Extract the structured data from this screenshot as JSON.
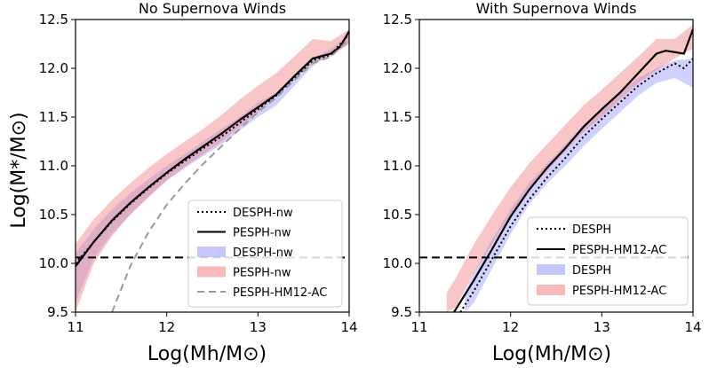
{
  "chart_data": {
    "type": "line",
    "ylabel": "Log(M*/M⊙)",
    "xlabel": "Log(Mh/M⊙)",
    "panels": [
      {
        "title": "No Supernova Winds",
        "xlim": [
          11,
          14
        ],
        "ylim": [
          9.5,
          12.5
        ],
        "xticks": [
          "11",
          "12",
          "13",
          "14"
        ],
        "yticks": [
          "9.5",
          "10.0",
          "10.5",
          "11.0",
          "11.5",
          "12.0",
          "12.5"
        ],
        "hline": 10.06,
        "legend": [
          "DESPH-nw",
          "PESPH-nw",
          "DESPH-nw",
          "PESPH-nw",
          "PESPH-HM12-AC"
        ],
        "series": [
          {
            "name": "DESPH-nw",
            "kind": "band",
            "color": "#8c8cff",
            "alpha": 0.4,
            "x": [
              11.0,
              11.2,
              11.4,
              11.6,
              11.8,
              12.0,
              12.2,
              12.4,
              12.6,
              12.8,
              13.0,
              13.2,
              13.4,
              13.6,
              13.8,
              14.0
            ],
            "lo": [
              9.6,
              10.05,
              10.3,
              10.5,
              10.68,
              10.85,
              10.98,
              11.1,
              11.22,
              11.36,
              11.5,
              11.62,
              11.82,
              12.02,
              12.15,
              12.25
            ],
            "hi": [
              10.1,
              10.35,
              10.55,
              10.72,
              10.86,
              11.0,
              11.12,
              11.25,
              11.38,
              11.5,
              11.65,
              11.75,
              11.92,
              12.1,
              12.2,
              12.35
            ]
          },
          {
            "name": "PESPH-nw",
            "kind": "band",
            "color": "#f08080",
            "alpha": 0.45,
            "x": [
              11.0,
              11.2,
              11.4,
              11.6,
              11.8,
              12.0,
              12.2,
              12.4,
              12.6,
              12.8,
              13.0,
              13.2,
              13.4,
              13.6,
              13.8,
              14.0
            ],
            "lo": [
              9.5,
              10.0,
              10.28,
              10.5,
              10.68,
              10.85,
              10.99,
              11.12,
              11.25,
              11.4,
              11.55,
              11.72,
              11.9,
              12.05,
              12.12,
              12.25
            ],
            "hi": [
              10.2,
              10.45,
              10.65,
              10.82,
              10.98,
              11.12,
              11.25,
              11.38,
              11.52,
              11.68,
              11.82,
              11.95,
              12.12,
              12.3,
              12.28,
              12.4
            ]
          },
          {
            "name": "DESPH-nw",
            "kind": "line",
            "color": "#000000",
            "dash": "2,3",
            "x": [
              11.0,
              11.2,
              11.4,
              11.6,
              11.8,
              12.0,
              12.2,
              12.4,
              12.6,
              12.8,
              13.0,
              13.2,
              13.4,
              13.6,
              13.8,
              14.0
            ],
            "y": [
              10.0,
              10.22,
              10.43,
              10.61,
              10.77,
              10.92,
              11.05,
              11.18,
              11.3,
              11.44,
              11.58,
              11.72,
              11.9,
              12.08,
              12.14,
              12.35
            ]
          },
          {
            "name": "PESPH-nw",
            "kind": "line",
            "color": "#000000",
            "dash": "",
            "x": [
              11.0,
              11.2,
              11.4,
              11.6,
              11.8,
              12.0,
              12.2,
              12.4,
              12.6,
              12.8,
              13.0,
              13.2,
              13.4,
              13.6,
              13.8,
              13.9,
              14.0
            ],
            "y": [
              9.97,
              10.22,
              10.44,
              10.62,
              10.78,
              10.93,
              11.07,
              11.2,
              11.33,
              11.47,
              11.6,
              11.73,
              11.92,
              12.1,
              12.15,
              12.22,
              12.38
            ]
          },
          {
            "name": "PESPH-HM12-AC",
            "kind": "line",
            "color": "#999999",
            "dash": "8,5",
            "x": [
              11.4,
              11.6,
              11.8,
              12.0,
              12.2,
              12.4,
              12.6,
              12.8,
              13.0,
              13.2,
              13.4,
              13.6,
              13.8,
              14.0
            ],
            "y": [
              9.5,
              9.97,
              10.32,
              10.6,
              10.82,
              11.02,
              11.2,
              11.38,
              11.55,
              11.7,
              11.88,
              12.05,
              12.12,
              12.3
            ]
          }
        ]
      },
      {
        "title": "With Supernova Winds",
        "xlim": [
          11,
          14
        ],
        "ylim": [
          9.5,
          12.5
        ],
        "xticks": [
          "11",
          "12",
          "13",
          "14"
        ],
        "yticks": [
          "9.5",
          "10.0",
          "10.5",
          "11.0",
          "11.5",
          "12.0",
          "12.5"
        ],
        "hline": 10.06,
        "legend": [
          "DESPH",
          "PESPH-HM12-AC",
          "DESPH",
          "PESPH-HM12-AC"
        ],
        "series": [
          {
            "name": "DESPH",
            "kind": "band",
            "color": "#8c8cff",
            "alpha": 0.4,
            "x": [
              11.5,
              11.6,
              11.8,
              12.0,
              12.2,
              12.4,
              12.6,
              12.8,
              13.0,
              13.2,
              13.4,
              13.6,
              13.8,
              14.0
            ],
            "lo": [
              9.5,
              9.6,
              9.95,
              10.3,
              10.6,
              10.82,
              11.0,
              11.2,
              11.38,
              11.55,
              11.72,
              11.85,
              11.9,
              11.8
            ],
            "hi": [
              9.7,
              9.9,
              10.25,
              10.55,
              10.82,
              11.02,
              11.22,
              11.42,
              11.58,
              11.75,
              11.9,
              12.0,
              12.08,
              12.1
            ]
          },
          {
            "name": "PESPH-HM12-AC",
            "kind": "band",
            "color": "#f08080",
            "alpha": 0.45,
            "x": [
              11.3,
              11.4,
              11.6,
              11.8,
              12.0,
              12.2,
              12.4,
              12.6,
              12.8,
              13.0,
              13.2,
              13.4,
              13.6,
              13.8,
              14.0
            ],
            "lo": [
              9.5,
              9.55,
              9.9,
              10.2,
              10.5,
              10.75,
              10.95,
              11.15,
              11.35,
              11.5,
              11.68,
              11.85,
              11.98,
              12.1,
              12.2
            ],
            "hi": [
              9.7,
              9.85,
              10.2,
              10.5,
              10.78,
              11.02,
              11.22,
              11.42,
              11.62,
              11.78,
              11.95,
              12.12,
              12.3,
              12.3,
              12.45
            ]
          },
          {
            "name": "DESPH",
            "kind": "line",
            "color": "#000000",
            "dash": "2,3",
            "x": [
              11.45,
              11.6,
              11.8,
              12.0,
              12.2,
              12.4,
              12.6,
              12.8,
              13.0,
              13.2,
              13.4,
              13.6,
              13.8,
              13.9,
              14.0
            ],
            "y": [
              9.5,
              9.72,
              10.05,
              10.38,
              10.65,
              10.88,
              11.08,
              11.3,
              11.48,
              11.65,
              11.82,
              11.95,
              12.05,
              12.0,
              12.1
            ]
          },
          {
            "name": "PESPH-HM12-AC",
            "kind": "line",
            "color": "#000000",
            "dash": "",
            "x": [
              11.38,
              11.6,
              11.8,
              12.0,
              12.2,
              12.4,
              12.6,
              12.8,
              13.0,
              13.2,
              13.4,
              13.6,
              13.7,
              13.9,
              14.0
            ],
            "y": [
              9.5,
              9.83,
              10.15,
              10.48,
              10.75,
              10.98,
              11.18,
              11.4,
              11.58,
              11.75,
              11.95,
              12.15,
              12.18,
              12.15,
              12.4
            ]
          }
        ]
      }
    ]
  }
}
